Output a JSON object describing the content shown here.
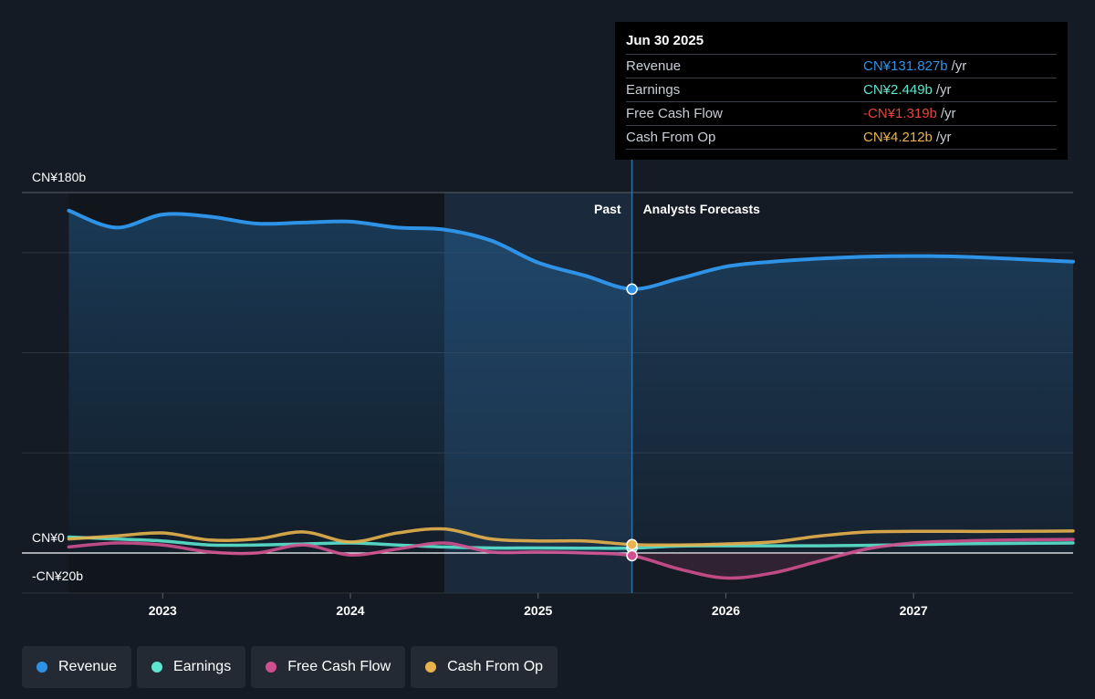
{
  "chart_data": {
    "type": "line",
    "y_unit": "CN¥b",
    "ylim": [
      -20,
      180
    ],
    "y_tick_labels": [
      {
        "value": 180,
        "label": "CN¥180b"
      },
      {
        "value": 0,
        "label": "CN¥0"
      },
      {
        "value": -20,
        "label": "-CN¥20b"
      }
    ],
    "y_gridlines": [
      180,
      150,
      100,
      50,
      0,
      -20
    ],
    "xlim": [
      2022.25,
      2027.85
    ],
    "x_ticks": [
      2023,
      2024,
      2025,
      2026,
      2027
    ],
    "x_tick_labels": [
      "2023",
      "2024",
      "2025",
      "2026",
      "2027"
    ],
    "past_label": "Past",
    "forecast_label": "Analysts Forecasts",
    "divider_x": 2025.5,
    "highlight_x_range": [
      2024.5,
      2025.5
    ],
    "series": [
      {
        "name": "Revenue",
        "color": "#2e93e6",
        "area": true,
        "points": [
          [
            2022.5,
            171
          ],
          [
            2022.75,
            162.5
          ],
          [
            2023.0,
            169
          ],
          [
            2023.25,
            168
          ],
          [
            2023.5,
            164.5
          ],
          [
            2023.75,
            165
          ],
          [
            2024.0,
            165.5
          ],
          [
            2024.25,
            162.5
          ],
          [
            2024.5,
            161.5
          ],
          [
            2024.75,
            156
          ],
          [
            2025.0,
            145
          ],
          [
            2025.25,
            138.5
          ],
          [
            2025.5,
            131.8
          ],
          [
            2025.75,
            137
          ],
          [
            2026.0,
            143
          ],
          [
            2026.25,
            145.5
          ],
          [
            2026.5,
            147
          ],
          [
            2026.75,
            148
          ],
          [
            2027.0,
            148.3
          ],
          [
            2027.25,
            148
          ],
          [
            2027.5,
            147
          ],
          [
            2027.85,
            145.5
          ]
        ]
      },
      {
        "name": "Earnings",
        "color": "#5ce6cf",
        "points": [
          [
            2022.5,
            8
          ],
          [
            2022.75,
            7
          ],
          [
            2023.0,
            6
          ],
          [
            2023.25,
            4
          ],
          [
            2023.5,
            4
          ],
          [
            2023.75,
            4.5
          ],
          [
            2024.0,
            5
          ],
          [
            2024.25,
            4
          ],
          [
            2024.5,
            3
          ],
          [
            2024.75,
            2.5
          ],
          [
            2025.0,
            2.5
          ],
          [
            2025.25,
            2.4
          ],
          [
            2025.5,
            2.449
          ],
          [
            2025.75,
            3.5
          ],
          [
            2026.0,
            3.6
          ],
          [
            2026.25,
            3.6
          ],
          [
            2026.5,
            3.6
          ],
          [
            2026.75,
            3.8
          ],
          [
            2027.0,
            4.2
          ],
          [
            2027.25,
            4.6
          ],
          [
            2027.5,
            4.8
          ],
          [
            2027.85,
            5
          ]
        ]
      },
      {
        "name": "Free Cash Flow",
        "color": "#d0508f",
        "points": [
          [
            2022.5,
            3
          ],
          [
            2022.75,
            5
          ],
          [
            2023.0,
            4
          ],
          [
            2023.25,
            0.5
          ],
          [
            2023.5,
            0
          ],
          [
            2023.75,
            4
          ],
          [
            2024.0,
            -1
          ],
          [
            2024.25,
            2
          ],
          [
            2024.5,
            5
          ],
          [
            2024.75,
            0.5
          ],
          [
            2025.0,
            0.5
          ],
          [
            2025.25,
            0
          ],
          [
            2025.5,
            -1.319
          ],
          [
            2025.75,
            -8
          ],
          [
            2026.0,
            -12.5
          ],
          [
            2026.25,
            -10
          ],
          [
            2026.5,
            -4
          ],
          [
            2026.75,
            2
          ],
          [
            2027.0,
            5
          ],
          [
            2027.25,
            6
          ],
          [
            2027.5,
            6.5
          ],
          [
            2027.85,
            6.8
          ]
        ]
      },
      {
        "name": "Cash From Op",
        "color": "#e8b34c",
        "points": [
          [
            2022.5,
            7
          ],
          [
            2022.75,
            8.5
          ],
          [
            2023.0,
            10
          ],
          [
            2023.25,
            6.5
          ],
          [
            2023.5,
            7
          ],
          [
            2023.75,
            10.5
          ],
          [
            2024.0,
            5.5
          ],
          [
            2024.25,
            10
          ],
          [
            2024.5,
            12
          ],
          [
            2024.75,
            7
          ],
          [
            2025.0,
            6
          ],
          [
            2025.25,
            6
          ],
          [
            2025.5,
            4.212
          ],
          [
            2025.75,
            4
          ],
          [
            2026.0,
            4.5
          ],
          [
            2026.25,
            5.5
          ],
          [
            2026.5,
            8.5
          ],
          [
            2026.75,
            10.5
          ],
          [
            2027.0,
            10.8
          ],
          [
            2027.25,
            10.8
          ],
          [
            2027.5,
            10.8
          ],
          [
            2027.85,
            11
          ]
        ]
      }
    ]
  },
  "tooltip": {
    "date": "Jun 30 2025",
    "rows": [
      {
        "label": "Revenue",
        "value": "CN¥131.827b",
        "unit": "/yr",
        "color": "#2e93e6"
      },
      {
        "label": "Earnings",
        "value": "CN¥2.449b",
        "unit": "/yr",
        "color": "#5ce6cf"
      },
      {
        "label": "Free Cash Flow",
        "value": "-CN¥1.319b",
        "unit": "/yr",
        "color": "#e8453c"
      },
      {
        "label": "Cash From Op",
        "value": "CN¥4.212b",
        "unit": "/yr",
        "color": "#e8b34c"
      }
    ]
  },
  "legend": [
    {
      "label": "Revenue",
      "color": "#2e93e6"
    },
    {
      "label": "Earnings",
      "color": "#5ce6cf"
    },
    {
      "label": "Free Cash Flow",
      "color": "#d0508f"
    },
    {
      "label": "Cash From Op",
      "color": "#e8b34c"
    }
  ]
}
